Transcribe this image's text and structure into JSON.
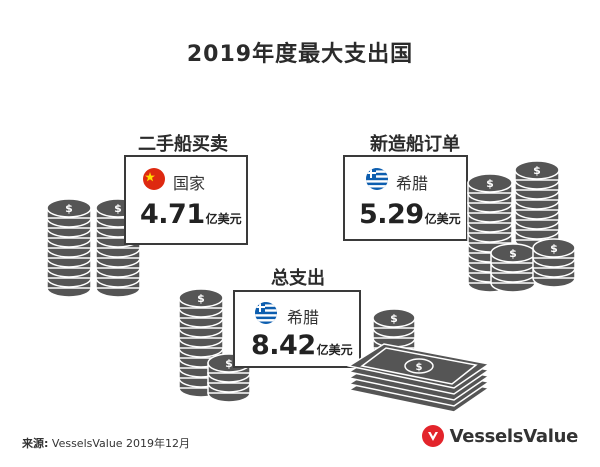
{
  "title": "2019年度最大支出国",
  "sections": {
    "second_hand": {
      "title": "二手船买卖",
      "country": "国家",
      "value": "4.71",
      "unit": "亿美元"
    },
    "newbuild": {
      "title": "新造船订单",
      "country": "希腊",
      "value": "5.29",
      "unit": "亿美元"
    },
    "total": {
      "title": "总支出",
      "country": "希腊",
      "value": "8.42",
      "unit": "亿美元"
    }
  },
  "footer": {
    "source_label": "来源:",
    "source_text": " VesselsValue 2019年12月",
    "brand": "VesselsValue"
  },
  "colors": {
    "accent": "#e3242b",
    "coin": "#555555",
    "text": "#2b2b2b"
  },
  "icons": {
    "coin": "coin-stack-icon",
    "cash": "cash-stack-icon",
    "cn_flag": "china-flag-icon",
    "gr_flag": "greece-flag-icon",
    "logo": "vesselsvalue-logo-icon"
  }
}
